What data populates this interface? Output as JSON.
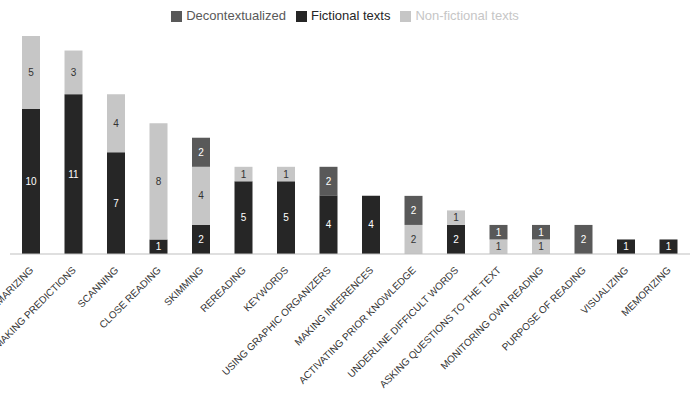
{
  "chart_data": {
    "type": "bar",
    "stacked": true,
    "data_labels": true,
    "tick_labels": "x",
    "legend": "top",
    "grid": false,
    "categories": [
      "SUMMARIZING",
      "MAKING PREDICTIONS",
      "SCANNING",
      "CLOSE READING",
      "SKIMMING",
      "REREADING",
      "KEYWORDS",
      "USING GRAPHIC ORGANIZERS",
      "MAKING INFERENCES",
      "ACTIVATING PRIOR KNOWLEDGE",
      "UNDERLINE DIFFICULT WORDS",
      "ASKING QUESTIONS TO THE TEXT",
      "MONITORING OWN READING",
      "PURPOSE OF READING",
      "VISUALIZING",
      "MEMORIZING"
    ],
    "series": [
      {
        "name": "Fictional texts",
        "color": "#262626",
        "values": [
          10,
          11,
          7,
          1,
          2,
          5,
          5,
          4,
          4,
          null,
          2,
          null,
          null,
          null,
          1,
          1
        ]
      },
      {
        "name": "Non-fictional texts",
        "color": "#c6c6c6",
        "values": [
          5,
          3,
          4,
          8,
          4,
          1,
          1,
          null,
          null,
          2,
          1,
          1,
          1,
          null,
          null,
          null
        ]
      },
      {
        "name": "Decontextualized",
        "color": "#595959",
        "values": [
          null,
          null,
          null,
          null,
          2,
          null,
          null,
          2,
          null,
          2,
          null,
          1,
          1,
          2,
          null,
          null
        ]
      }
    ],
    "ylim": [
      0,
      15
    ]
  }
}
